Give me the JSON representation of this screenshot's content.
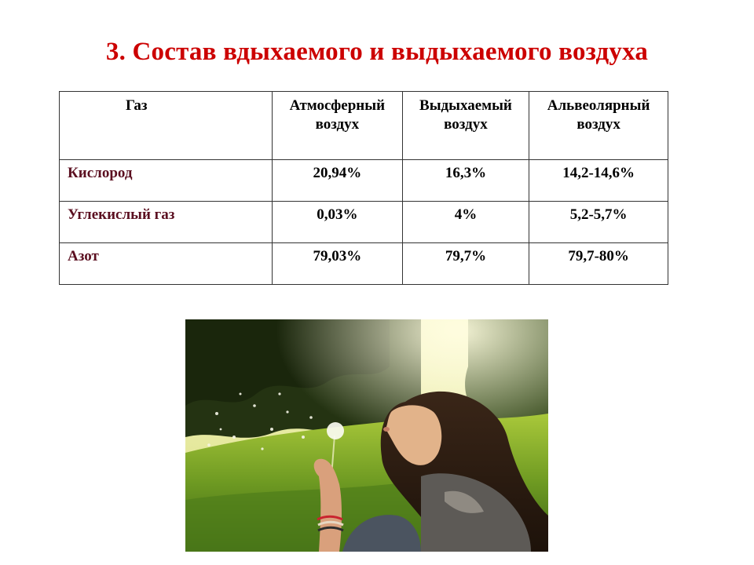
{
  "slide": {
    "title": "3. Состав вдыхаемого и выдыхаемого воздуха"
  },
  "table": {
    "headers": [
      [
        "Газ"
      ],
      [
        "Атмосферный",
        "воздух"
      ],
      [
        "Выдыхаемый",
        "воздух"
      ],
      [
        "Альвеолярный",
        "воздух"
      ]
    ],
    "rows": [
      [
        "Кислород",
        "20,94%",
        "16,3%",
        "14,2-14,6%"
      ],
      [
        "Углекислый газ",
        "0,03%",
        "4%",
        "5,2-5,7%"
      ],
      [
        "Азот",
        "79,03%",
        "79,7%",
        "79,7-80%"
      ]
    ],
    "colors": {
      "gas_name": "#5b0f20",
      "title": "#cc0000"
    }
  },
  "photo": {
    "icon": "girl-blowing-dandelion-photo"
  }
}
